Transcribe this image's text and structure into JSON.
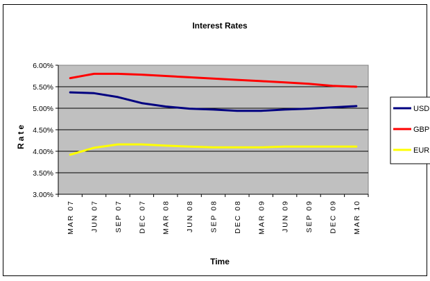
{
  "chart_data": {
    "type": "line",
    "title": "Interest Rates",
    "xlabel": "Time",
    "ylabel": "Rate",
    "ylim": [
      0.03,
      0.06
    ],
    "yticks": [
      "3.00%",
      "3.50%",
      "4.00%",
      "4.50%",
      "5.00%",
      "5.50%",
      "6.00%"
    ],
    "categories": [
      "MAR 07",
      "JUN 07",
      "SEP 07",
      "DEC 07",
      "MAR 08",
      "JUN 08",
      "SEP 08",
      "DEC 08",
      "MAR 09",
      "JUN 09",
      "SEP 09",
      "DEC 09",
      "MAR 10"
    ],
    "grid": true,
    "legend_position": "right",
    "plot_background": "#c0c0c0",
    "series": [
      {
        "name": "USD",
        "color": "#000080",
        "values": [
          0.0537,
          0.0535,
          0.0526,
          0.0512,
          0.0504,
          0.0499,
          0.0497,
          0.0494,
          0.0494,
          0.0497,
          0.0499,
          0.0502,
          0.0505
        ]
      },
      {
        "name": "GBP",
        "color": "#ff0000",
        "values": [
          0.057,
          0.058,
          0.058,
          0.0578,
          0.0575,
          0.0572,
          0.0569,
          0.0566,
          0.0563,
          0.056,
          0.0557,
          0.0552,
          0.055
        ]
      },
      {
        "name": "EUR",
        "color": "#ffff00",
        "values": [
          0.0392,
          0.0408,
          0.0416,
          0.0416,
          0.0413,
          0.0411,
          0.0409,
          0.0409,
          0.0409,
          0.0411,
          0.0411,
          0.0411,
          0.0411
        ]
      }
    ]
  }
}
